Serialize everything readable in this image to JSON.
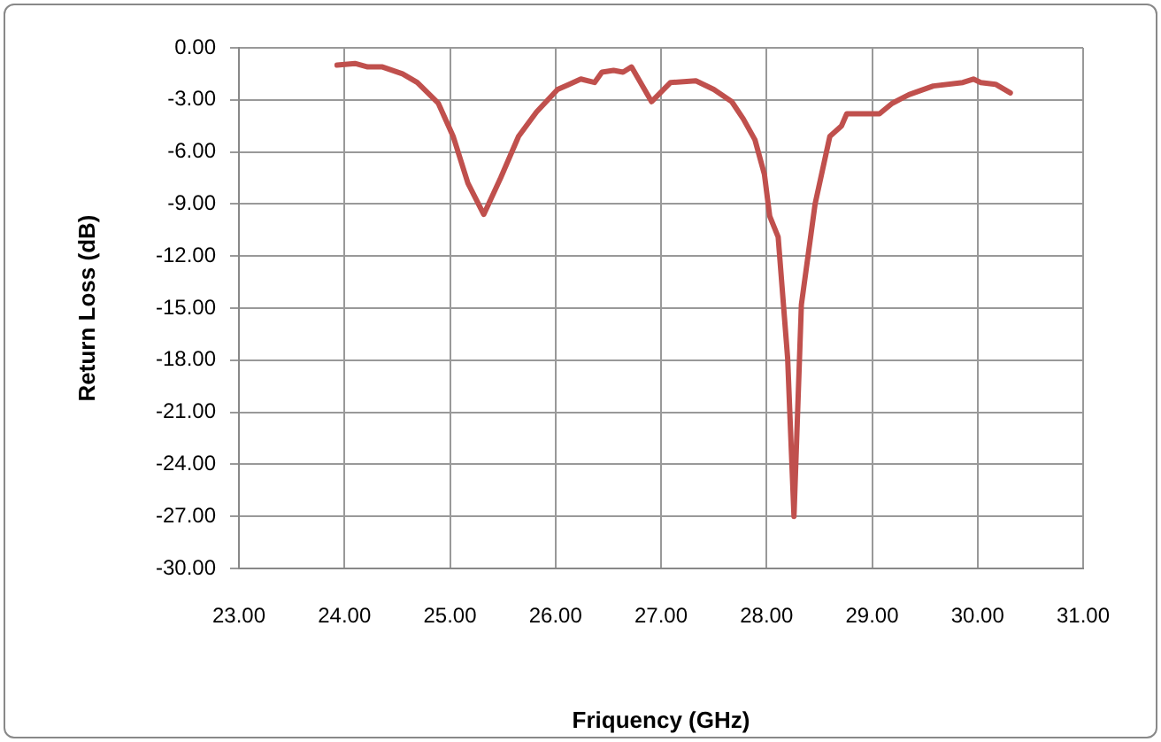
{
  "chart_data": {
    "type": "line",
    "xlabel": "Friquency (GHz)",
    "ylabel": "Return Loss (dB)",
    "x": [
      23.93,
      24.1,
      24.22,
      24.36,
      24.55,
      24.69,
      24.89,
      25.03,
      25.17,
      25.32,
      25.48,
      25.65,
      25.82,
      26.02,
      26.13,
      26.24,
      26.37,
      26.44,
      26.55,
      26.64,
      26.72,
      26.91,
      27.09,
      27.33,
      27.5,
      27.67,
      27.78,
      27.89,
      27.98,
      28.03,
      28.11,
      28.2,
      28.26,
      28.33,
      28.46,
      28.6,
      28.71,
      28.76,
      29.07,
      29.19,
      29.35,
      29.58,
      29.86,
      29.96,
      30.03,
      30.17,
      30.31
    ],
    "series": [
      {
        "color": "#c0504d",
        "values": [
          -1.0,
          -0.9,
          -1.1,
          -1.1,
          -1.5,
          -2.0,
          -3.2,
          -5.1,
          -7.8,
          -9.6,
          -7.5,
          -5.1,
          -3.7,
          -2.4,
          -2.1,
          -1.8,
          -2.0,
          -1.4,
          -1.3,
          -1.4,
          -1.1,
          -3.1,
          -2.0,
          -1.9,
          -2.4,
          -3.1,
          -4.1,
          -5.3,
          -7.3,
          -9.7,
          -10.9,
          -17.9,
          -27.0,
          -14.8,
          -9.0,
          -5.1,
          -4.5,
          -3.8,
          -3.8,
          -3.2,
          -2.7,
          -2.2,
          -2.0,
          -1.8,
          -2.0,
          -2.1,
          -2.6
        ]
      }
    ],
    "xlim": [
      23,
      31
    ],
    "xticks": [
      {
        "value": 23,
        "label": "23.00"
      },
      {
        "value": 24,
        "label": "24.00"
      },
      {
        "value": 25,
        "label": "25.00"
      },
      {
        "value": 26,
        "label": "26.00"
      },
      {
        "value": 27,
        "label": "27.00"
      },
      {
        "value": 28,
        "label": "28.00"
      },
      {
        "value": 29,
        "label": "29.00"
      },
      {
        "value": 30,
        "label": "30.00"
      },
      {
        "value": 31,
        "label": "31.00"
      }
    ],
    "ylim": [
      -30,
      0
    ],
    "yticks": [
      {
        "value": -30,
        "label": "-30.00"
      },
      {
        "value": -27,
        "label": "-27.00"
      },
      {
        "value": -24,
        "label": "-24.00"
      },
      {
        "value": -21,
        "label": "-21.00"
      },
      {
        "value": -18,
        "label": "-18.00"
      },
      {
        "value": -15,
        "label": "-15.00"
      },
      {
        "value": -12,
        "label": "-12.00"
      },
      {
        "value": -9,
        "label": "-9.00"
      },
      {
        "value": -6,
        "label": "-6.00"
      },
      {
        "value": -3,
        "label": "-3.00"
      },
      {
        "value": 0,
        "label": "0.00"
      }
    ],
    "grid": true,
    "legend": false,
    "marker": "none",
    "line_style": "solid"
  }
}
